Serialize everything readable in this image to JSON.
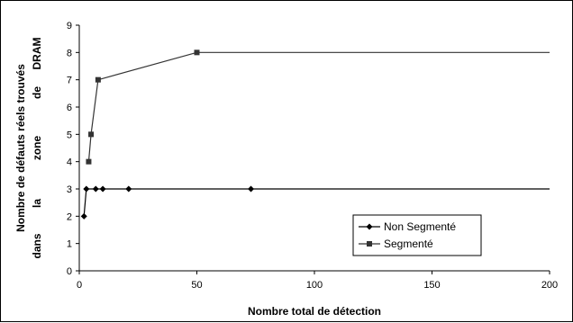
{
  "chart_data": {
    "type": "line",
    "title": "",
    "xlabel": "Nombre total de détection",
    "ylabel_lines": [
      [
        "Nombre de défauts réels trouvés"
      ],
      [
        "dans",
        "la",
        "zone",
        "de",
        "DRAM"
      ]
    ],
    "xlim": [
      0,
      200
    ],
    "ylim": [
      0,
      9
    ],
    "x_ticks": [
      0,
      50,
      100,
      150,
      200
    ],
    "y_ticks": [
      0,
      1,
      2,
      3,
      4,
      5,
      6,
      7,
      8,
      9
    ],
    "grid": false,
    "legend_position": "bottom-right",
    "series": [
      {
        "name": "Non Segmenté",
        "marker": "diamond",
        "color": "#000000",
        "x": [
          2,
          3,
          7,
          10,
          21,
          73,
          200
        ],
        "y": [
          2,
          3,
          3,
          3,
          3,
          3,
          3
        ],
        "markers_until": 6
      },
      {
        "name": "Segmenté",
        "marker": "square",
        "color": "#333333",
        "x": [
          4,
          5,
          8,
          50,
          200
        ],
        "y": [
          4,
          5,
          7,
          8,
          8
        ],
        "markers_until": 4
      }
    ]
  }
}
